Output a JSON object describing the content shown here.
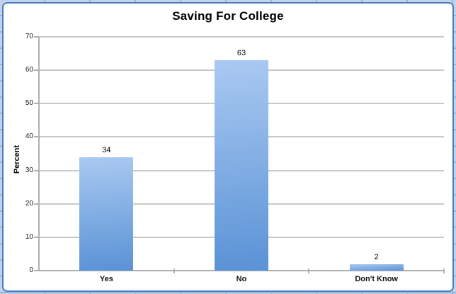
{
  "workbook": {
    "background_color": "#c2d2e9",
    "cell_gridline_color": "#9cb4d6",
    "chart_frame_border_color": "#4d7ec3",
    "chart_frame_fill": "#ffffff"
  },
  "chart_data": {
    "type": "bar",
    "title": "Saving For College",
    "categories": [
      "Yes",
      "No",
      "Don't Know"
    ],
    "values": [
      34,
      63,
      2
    ],
    "data_labels": [
      "34",
      "63",
      "2"
    ],
    "xlabel": "",
    "ylabel": "Percent",
    "ylim": [
      0,
      70
    ],
    "ytick_step": 10,
    "ytick_labels": [
      "0",
      "10",
      "20",
      "30",
      "40",
      "50",
      "60",
      "70"
    ],
    "grid": "horizontal",
    "legend_position": "none",
    "bar_gradient_top": "#a9c9f1",
    "bar_gradient_bottom": "#5a92d6",
    "gridline_color": "#c9c9c9",
    "axis_line_color": "#b0b0b0",
    "tick_color": "#b0b0b0",
    "text_color": "#1a1a1a"
  }
}
